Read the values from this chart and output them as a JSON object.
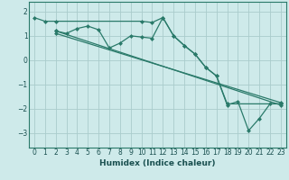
{
  "xlabel": "Humidex (Indice chaleur)",
  "bg_color": "#ceeaea",
  "grid_color": "#aacccc",
  "line_color": "#2a7a6a",
  "xlim": [
    -0.5,
    23.5
  ],
  "ylim": [
    -3.6,
    2.4
  ],
  "yticks": [
    -3,
    -2,
    -1,
    0,
    1,
    2
  ],
  "xticks": [
    0,
    1,
    2,
    3,
    4,
    5,
    6,
    7,
    8,
    9,
    10,
    11,
    12,
    13,
    14,
    15,
    16,
    17,
    18,
    19,
    20,
    21,
    22,
    23
  ],
  "line1_x": [
    0,
    1,
    2,
    10,
    11,
    12,
    13,
    14,
    15,
    16,
    17,
    18,
    23
  ],
  "line1_y": [
    1.75,
    1.6,
    1.6,
    1.6,
    1.55,
    1.75,
    1.0,
    0.6,
    0.25,
    -0.3,
    -0.65,
    -1.8,
    -1.8
  ],
  "line2_x": [
    2,
    3,
    4,
    5,
    6,
    7,
    8,
    9,
    10,
    11,
    12,
    13,
    14,
    15,
    16,
    17,
    18,
    19,
    20,
    21,
    22,
    23
  ],
  "line2_y": [
    1.2,
    1.1,
    1.3,
    1.4,
    1.25,
    0.5,
    0.7,
    1.0,
    0.95,
    0.9,
    1.75,
    1.0,
    0.6,
    0.25,
    -0.3,
    -0.65,
    -1.85,
    -1.7,
    -2.9,
    -2.4,
    -1.8,
    -1.8
  ],
  "line3_x": [
    2,
    23
  ],
  "line3_y": [
    1.1,
    -1.75
  ],
  "line4_x": [
    2,
    23
  ],
  "line4_y": [
    1.2,
    -1.85
  ]
}
